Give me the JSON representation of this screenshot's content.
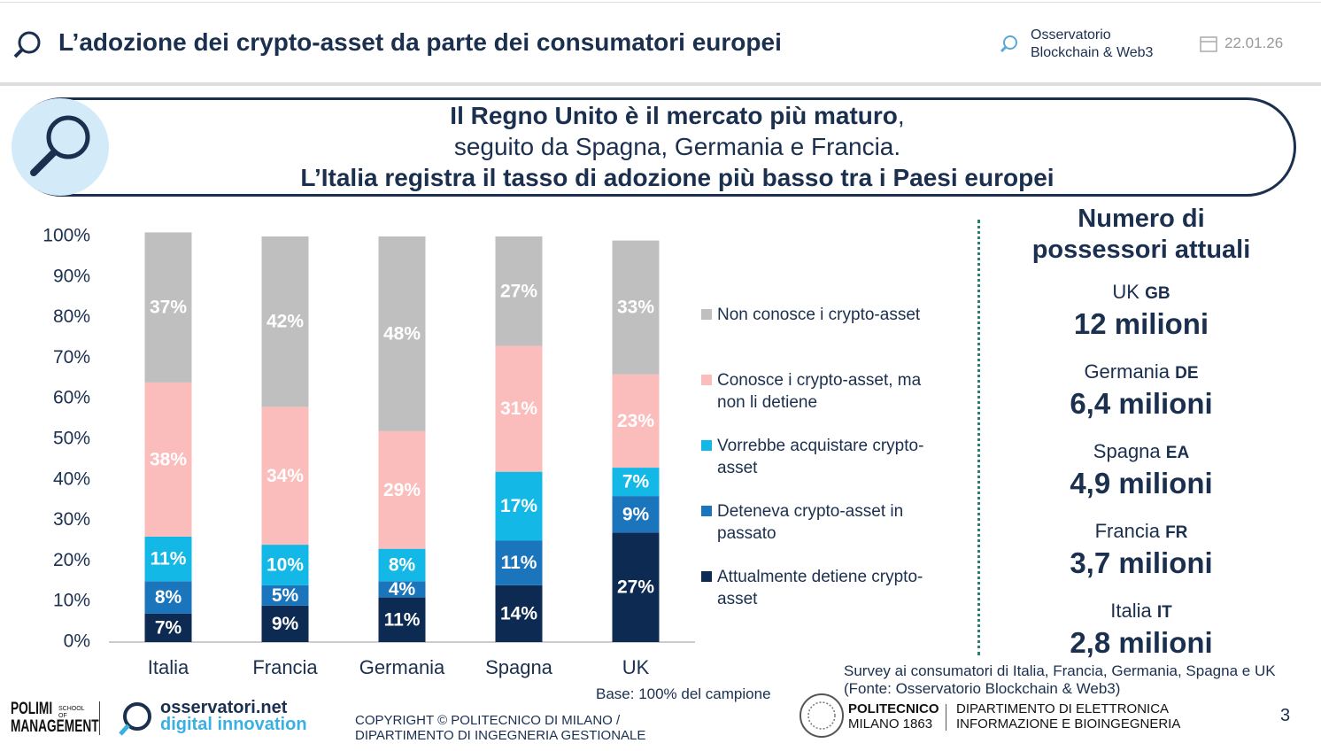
{
  "header": {
    "title": "L’adozione dei crypto-asset da parte dei consumatori europei",
    "observatory": [
      "Osservatorio",
      "Blockchain & Web3"
    ],
    "date": "22.01.26"
  },
  "callout": {
    "line1_bold": "Il Regno Unito è il mercato più maturo",
    "line1_rest": ",",
    "line2": "seguito da Spagna, Germania e Francia.",
    "line3": "L’Italia registra il tasso di adozione più basso tra i Paesi europei"
  },
  "chart_data": {
    "type": "stacked_bar",
    "categories": [
      "Italia",
      "Francia",
      "Germania",
      "Spagna",
      "UK"
    ],
    "series": [
      {
        "name": "Attualmente detiene crypto-asset",
        "color": "#0d2b52",
        "values": [
          7,
          9,
          11,
          14,
          27
        ],
        "value_labels": [
          "7%",
          "9%",
          "11%",
          "14%",
          "27%"
        ]
      },
      {
        "name": "Deteneva crypto-asset in passato",
        "color": "#1a75bc",
        "values": [
          8,
          5,
          4,
          11,
          9
        ],
        "value_labels": [
          "8%",
          "5%",
          "4%",
          "11%",
          "9%"
        ]
      },
      {
        "name": "Vorrebbe acquistare crypto-asset",
        "color": "#14b8e6",
        "values": [
          11,
          10,
          8,
          17,
          7
        ],
        "value_labels": [
          "11%",
          "10%",
          "8%",
          "17%",
          "7%"
        ]
      },
      {
        "name": "Conosce i crypto-asset, ma non li detiene",
        "color": "#fbbdbb",
        "values": [
          38,
          34,
          29,
          31,
          23
        ],
        "value_labels": [
          "38%",
          "34%",
          "29%",
          "31%",
          "23%"
        ]
      },
      {
        "name": "Non conosce i crypto-asset",
        "color": "#bfbfbf",
        "values": [
          37,
          42,
          48,
          27,
          33
        ],
        "value_labels": [
          "37%",
          "42%",
          "48%",
          "27%",
          "33%"
        ]
      }
    ],
    "ylim": [
      0,
      100
    ],
    "yticks": [
      {
        "value": 0,
        "label": "0%"
      },
      {
        "value": 10,
        "label": "10%"
      },
      {
        "value": 20,
        "label": "20%"
      },
      {
        "value": 30,
        "label": "30%"
      },
      {
        "value": 40,
        "label": "40%"
      },
      {
        "value": 50,
        "label": "50%"
      },
      {
        "value": 60,
        "label": "60%"
      },
      {
        "value": 70,
        "label": "70%"
      },
      {
        "value": 80,
        "label": "80%"
      },
      {
        "value": 90,
        "label": "90%"
      },
      {
        "value": 100,
        "label": "100%"
      }
    ],
    "legend": "right",
    "note": "Base: 100% del campione"
  },
  "side_panel": {
    "title": [
      "Numero di",
      "possessori attuali"
    ],
    "items": [
      {
        "country": "UK",
        "code": "GB",
        "owners": "12 milioni"
      },
      {
        "country": "Germania",
        "code": "DE",
        "owners": "6,4 milioni"
      },
      {
        "country": "Spagna",
        "code": "EA",
        "owners": "4,9 milioni"
      },
      {
        "country": "Francia",
        "code": "FR",
        "owners": "3,7 milioni"
      },
      {
        "country": "Italia",
        "code": "IT",
        "owners": "2,8 milioni"
      }
    ]
  },
  "footer": {
    "source": [
      "Survey ai consumatori di Italia, Francia, Germania, Spagna e UK",
      "(Fonte: Osservatorio Blockchain & Web3)"
    ],
    "copyright": [
      "COPYRIGHT © POLITECNICO DI MILANO /",
      "DIPARTIMENTO DI INGEGNERIA GESTIONALE"
    ],
    "page": "3",
    "logos": {
      "polimi": "POLIMI",
      "polimi_school": "SCHOOL OF",
      "polimi_management": "MANAGEMENT",
      "osservatori": "osservatori.net",
      "osservatori_sub": "digital innovation",
      "politecnico": "POLITECNICO",
      "politecnico_sub": "MILANO 1863",
      "department": [
        "DIPARTIMENTO DI ELETTRONICA",
        "INFORMAZIONE E BIOINGEGNERIA"
      ]
    }
  }
}
